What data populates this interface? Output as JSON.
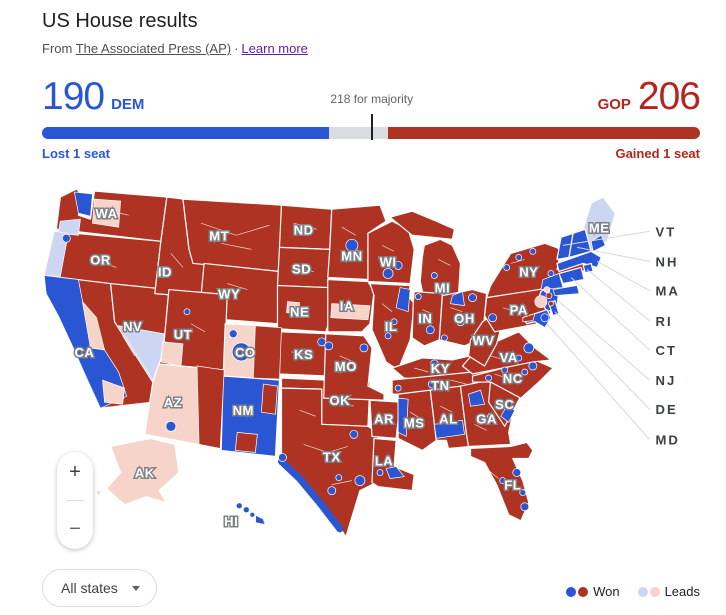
{
  "header": {
    "title": "US House results",
    "source_prefix": "From",
    "source_link": "The Associated Press (AP)",
    "separator": "·",
    "learn_more": "Learn more"
  },
  "scoreboard": {
    "dem_seats": 190,
    "dem_label": "DEM",
    "gop_seats": 206,
    "gop_label": "GOP",
    "majority_seats": 218,
    "majority_note": "218 for majority",
    "dem_change": "Lost 1 seat",
    "gop_change": "Gained 1 seat"
  },
  "colors": {
    "dem_won": "#2a56d4",
    "gop_won": "#ae3322",
    "dem_leads": "#ccd5f2",
    "gop_leads": "#f6d4ca",
    "dem_text": "#2a56d4",
    "gop_text": "#b3261d",
    "majority_bar": "#dadce0",
    "tick": "#202124"
  },
  "map": {
    "callouts": [
      "VT",
      "NH",
      "MA",
      "RI",
      "CT",
      "NJ",
      "DE",
      "MD"
    ],
    "states": [
      {
        "id": "WA",
        "label": "WA",
        "result": "gop"
      },
      {
        "id": "OR",
        "label": "OR",
        "result": "gop"
      },
      {
        "id": "CA",
        "label": "CA",
        "result": "gop"
      },
      {
        "id": "NV",
        "label": "NV",
        "result": "gop"
      },
      {
        "id": "ID",
        "label": "ID",
        "result": "gop"
      },
      {
        "id": "MT",
        "label": "MT",
        "result": "gop"
      },
      {
        "id": "WY",
        "label": "WY",
        "result": "gop"
      },
      {
        "id": "UT",
        "label": "UT",
        "result": "gop"
      },
      {
        "id": "CO",
        "label": "CO",
        "result": "gop-lead"
      },
      {
        "id": "AZ",
        "label": "AZ",
        "result": "gop-lead"
      },
      {
        "id": "NM",
        "label": "NM",
        "result": "dem"
      },
      {
        "id": "ND",
        "label": "ND",
        "result": "gop"
      },
      {
        "id": "SD",
        "label": "SD",
        "result": "gop"
      },
      {
        "id": "NE",
        "label": "NE",
        "result": "gop"
      },
      {
        "id": "KS",
        "label": "KS",
        "result": "gop"
      },
      {
        "id": "OK",
        "label": "OK",
        "result": "gop"
      },
      {
        "id": "TX",
        "label": "TX",
        "result": "gop"
      },
      {
        "id": "MN",
        "label": "MN",
        "result": "gop"
      },
      {
        "id": "IA",
        "label": "IA",
        "result": "gop"
      },
      {
        "id": "MO",
        "label": "MO",
        "result": "gop"
      },
      {
        "id": "AR",
        "label": "AR",
        "result": "gop"
      },
      {
        "id": "LA",
        "label": "LA",
        "result": "gop"
      },
      {
        "id": "WI",
        "label": "WI",
        "result": "gop"
      },
      {
        "id": "IL",
        "label": "IL",
        "result": "gop"
      },
      {
        "id": "MIU",
        "label": "",
        "result": "gop"
      },
      {
        "id": "MI",
        "label": "MI",
        "result": "gop"
      },
      {
        "id": "IN",
        "label": "IN",
        "result": "gop"
      },
      {
        "id": "OH",
        "label": "OH",
        "result": "gop"
      },
      {
        "id": "KY",
        "label": "KY",
        "result": "gop"
      },
      {
        "id": "TN",
        "label": "TN",
        "result": "gop"
      },
      {
        "id": "MS",
        "label": "MS",
        "result": "gop"
      },
      {
        "id": "AL",
        "label": "AL",
        "result": "gop"
      },
      {
        "id": "GA",
        "label": "GA",
        "result": "gop"
      },
      {
        "id": "FL",
        "label": "FL",
        "result": "gop"
      },
      {
        "id": "SC",
        "label": "SC",
        "result": "gop"
      },
      {
        "id": "NC",
        "label": "NC",
        "result": "gop"
      },
      {
        "id": "VA",
        "label": "VA",
        "result": "gop"
      },
      {
        "id": "WV",
        "label": "WV",
        "result": "gop"
      },
      {
        "id": "PA",
        "label": "PA",
        "result": "gop"
      },
      {
        "id": "NY",
        "label": "NY",
        "result": "gop"
      },
      {
        "id": "ME",
        "label": "ME",
        "result": "dem-lead"
      },
      {
        "id": "VT",
        "label": "",
        "result": "dem"
      },
      {
        "id": "NH",
        "label": "",
        "result": "dem"
      },
      {
        "id": "MA",
        "label": "",
        "result": "dem"
      },
      {
        "id": "RI",
        "label": "",
        "result": "dem"
      },
      {
        "id": "CT",
        "label": "",
        "result": "dem"
      },
      {
        "id": "NJ",
        "label": "",
        "result": "dem"
      },
      {
        "id": "DE",
        "label": "",
        "result": "dem"
      },
      {
        "id": "MD",
        "label": "",
        "result": "dem"
      },
      {
        "id": "AK",
        "label": "AK",
        "result": "gop-lead"
      },
      {
        "id": "HI",
        "label": "HI",
        "result": "dem"
      }
    ]
  },
  "controls": {
    "zoom_in": "+",
    "zoom_out": "−",
    "states_filter": "All states"
  },
  "legend": {
    "won_label": "Won",
    "leads_label": "Leads"
  }
}
